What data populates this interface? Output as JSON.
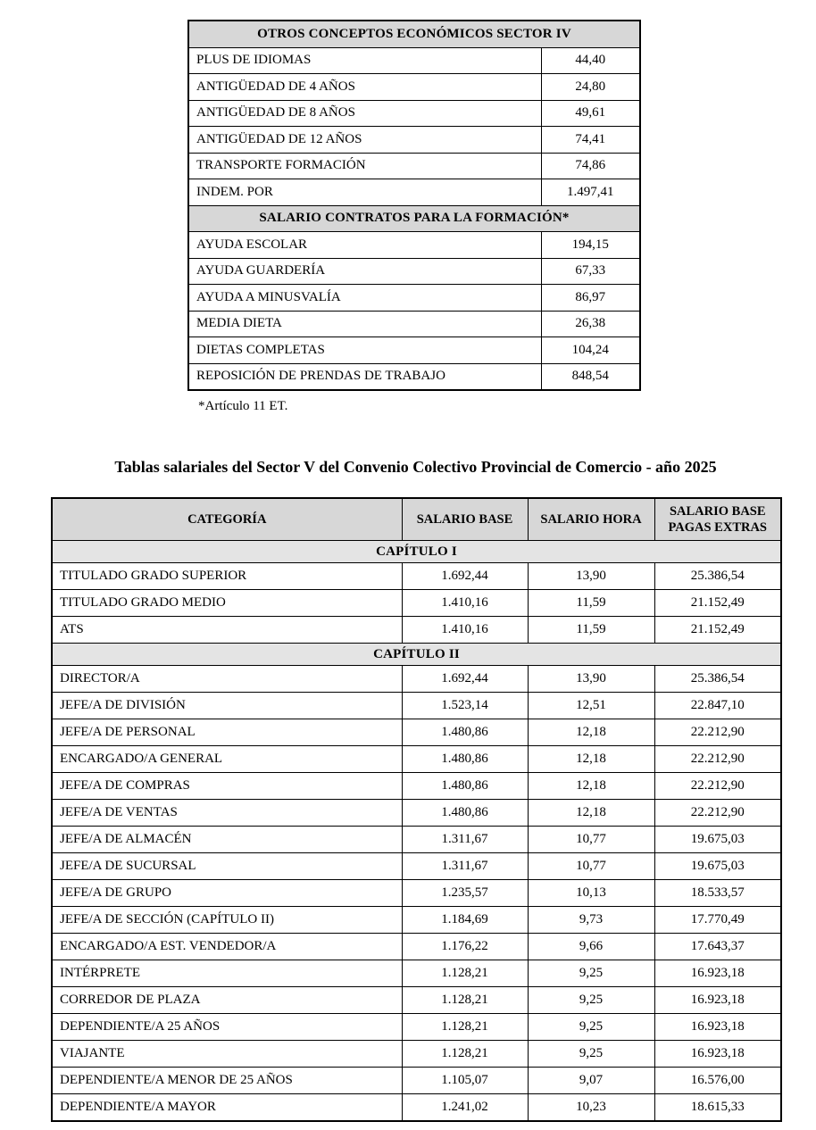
{
  "colors": {
    "page_bg": "#ffffff",
    "header_bg": "#d7d7d7",
    "section_bg": "#e4e4e4",
    "border": "#000000",
    "text": "#000000"
  },
  "table1": {
    "sections": [
      {
        "header": "OTROS CONCEPTOS ECONÓMICOS SECTOR IV",
        "rows": [
          {
            "label": "PLUS DE IDIOMAS",
            "value": "44,40"
          },
          {
            "label": "ANTIGÜEDAD DE 4 AÑOS",
            "value": "24,80"
          },
          {
            "label": "ANTIGÜEDAD DE 8 AÑOS",
            "value": "49,61"
          },
          {
            "label": "ANTIGÜEDAD DE 12 AÑOS",
            "value": "74,41"
          },
          {
            "label": "TRANSPORTE FORMACIÓN",
            "value": "74,86"
          },
          {
            "label": "INDEM. POR",
            "value": "1.497,41"
          }
        ]
      },
      {
        "header": "SALARIO CONTRATOS PARA LA FORMACIÓN*",
        "rows": [
          {
            "label": "AYUDA ESCOLAR",
            "value": "194,15"
          },
          {
            "label": "AYUDA GUARDERÍA",
            "value": "67,33"
          },
          {
            "label": "AYUDA A MINUSVALÍA",
            "value": "86,97"
          },
          {
            "label": "MEDIA DIETA",
            "value": "26,38"
          },
          {
            "label": "DIETAS COMPLETAS",
            "value": "104,24"
          },
          {
            "label": "REPOSICIÓN DE PRENDAS DE TRABAJO",
            "value": "848,54"
          }
        ]
      }
    ],
    "footnote": "*Artículo 11 ET."
  },
  "table2": {
    "title": "Tablas salariales del Sector V del Convenio Colectivo Provincial de Comercio - año 2025",
    "columns": [
      "CATEGORÍA",
      "SALARIO BASE",
      "SALARIO HORA",
      "SALARIO BASE PAGAS EXTRAS"
    ],
    "sections": [
      {
        "header": "CAPÍTULO I",
        "rows": [
          [
            "TITULADO GRADO SUPERIOR",
            "1.692,44",
            "13,90",
            "25.386,54"
          ],
          [
            "TITULADO GRADO MEDIO",
            "1.410,16",
            "11,59",
            "21.152,49"
          ],
          [
            "ATS",
            "1.410,16",
            "11,59",
            "21.152,49"
          ]
        ]
      },
      {
        "header": "CAPÍTULO II",
        "rows": [
          [
            "DIRECTOR/A",
            "1.692,44",
            "13,90",
            "25.386,54"
          ],
          [
            "JEFE/A DE DIVISIÓN",
            "1.523,14",
            "12,51",
            "22.847,10"
          ],
          [
            "JEFE/A DE PERSONAL",
            "1.480,86",
            "12,18",
            "22.212,90"
          ],
          [
            "ENCARGADO/A GENERAL",
            "1.480,86",
            "12,18",
            "22.212,90"
          ],
          [
            "JEFE/A DE COMPRAS",
            "1.480,86",
            "12,18",
            "22.212,90"
          ],
          [
            "JEFE/A DE VENTAS",
            "1.480,86",
            "12,18",
            "22.212,90"
          ],
          [
            "JEFE/A DE ALMACÉN",
            "1.311,67",
            "10,77",
            "19.675,03"
          ],
          [
            "JEFE/A DE SUCURSAL",
            "1.311,67",
            "10,77",
            "19.675,03"
          ],
          [
            "JEFE/A DE GRUPO",
            "1.235,57",
            "10,13",
            "18.533,57"
          ],
          [
            "JEFE/A DE SECCIÓN (CAPÍTULO II)",
            "1.184,69",
            "9,73",
            "17.770,49"
          ],
          [
            "ENCARGADO/A EST. VENDEDOR/A",
            "1.176,22",
            "9,66",
            "17.643,37"
          ],
          [
            "INTÉRPRETE",
            "1.128,21",
            "9,25",
            "16.923,18"
          ],
          [
            "CORREDOR DE PLAZA",
            "1.128,21",
            "9,25",
            "16.923,18"
          ],
          [
            "DEPENDIENTE/A 25 AÑOS",
            "1.128,21",
            "9,25",
            "16.923,18"
          ],
          [
            "VIAJANTE",
            "1.128,21",
            "9,25",
            "16.923,18"
          ],
          [
            "DEPENDIENTE/A MENOR DE 25 AÑOS",
            "1.105,07",
            "9,07",
            "16.576,00"
          ],
          [
            "DEPENDIENTE/A MAYOR",
            "1.241,02",
            "10,23",
            "18.615,33"
          ]
        ]
      }
    ]
  }
}
